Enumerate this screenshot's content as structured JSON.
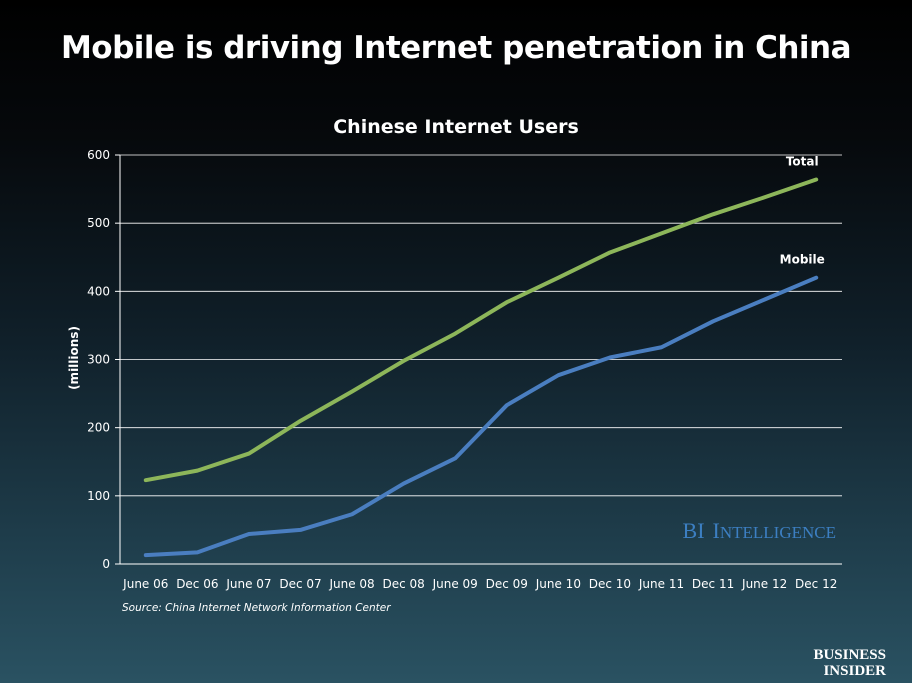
{
  "headline": "Mobile is driving Internet penetration in China",
  "source": "Source: China Internet Network Information Center",
  "watermark": {
    "bi": "BI",
    "cap1": "I",
    "rest": "NTELLIGENCE"
  },
  "logo": {
    "line1": "BUSINESS",
    "line2": "INSIDER"
  },
  "colors": {
    "total": "#8db65a",
    "mobile": "#4a7ec0",
    "watermark": "#3c7fc2"
  },
  "chart_data": {
    "type": "line",
    "title": "Chinese Internet Users",
    "xlabel": "",
    "ylabel": "(millions)",
    "ylim": [
      0,
      600
    ],
    "yticks": [
      0,
      100,
      200,
      300,
      400,
      500,
      600
    ],
    "grid": true,
    "categories": [
      "June 06",
      "Dec 06",
      "June 07",
      "Dec 07",
      "June 08",
      "Dec 08",
      "June 09",
      "Dec 09",
      "June 10",
      "Dec 10",
      "June 11",
      "Dec 11",
      "June 12",
      "Dec 12"
    ],
    "series": [
      {
        "name": "Total",
        "color": "#8db65a",
        "values": [
          123,
          137,
          162,
          210,
          253,
          298,
          338,
          384,
          420,
          457,
          485,
          513,
          538,
          564
        ]
      },
      {
        "name": "Mobile",
        "color": "#4a7ec0",
        "values": [
          13,
          17,
          44,
          50,
          73,
          118,
          155,
          233,
          277,
          303,
          318,
          356,
          388,
          420
        ]
      }
    ]
  }
}
